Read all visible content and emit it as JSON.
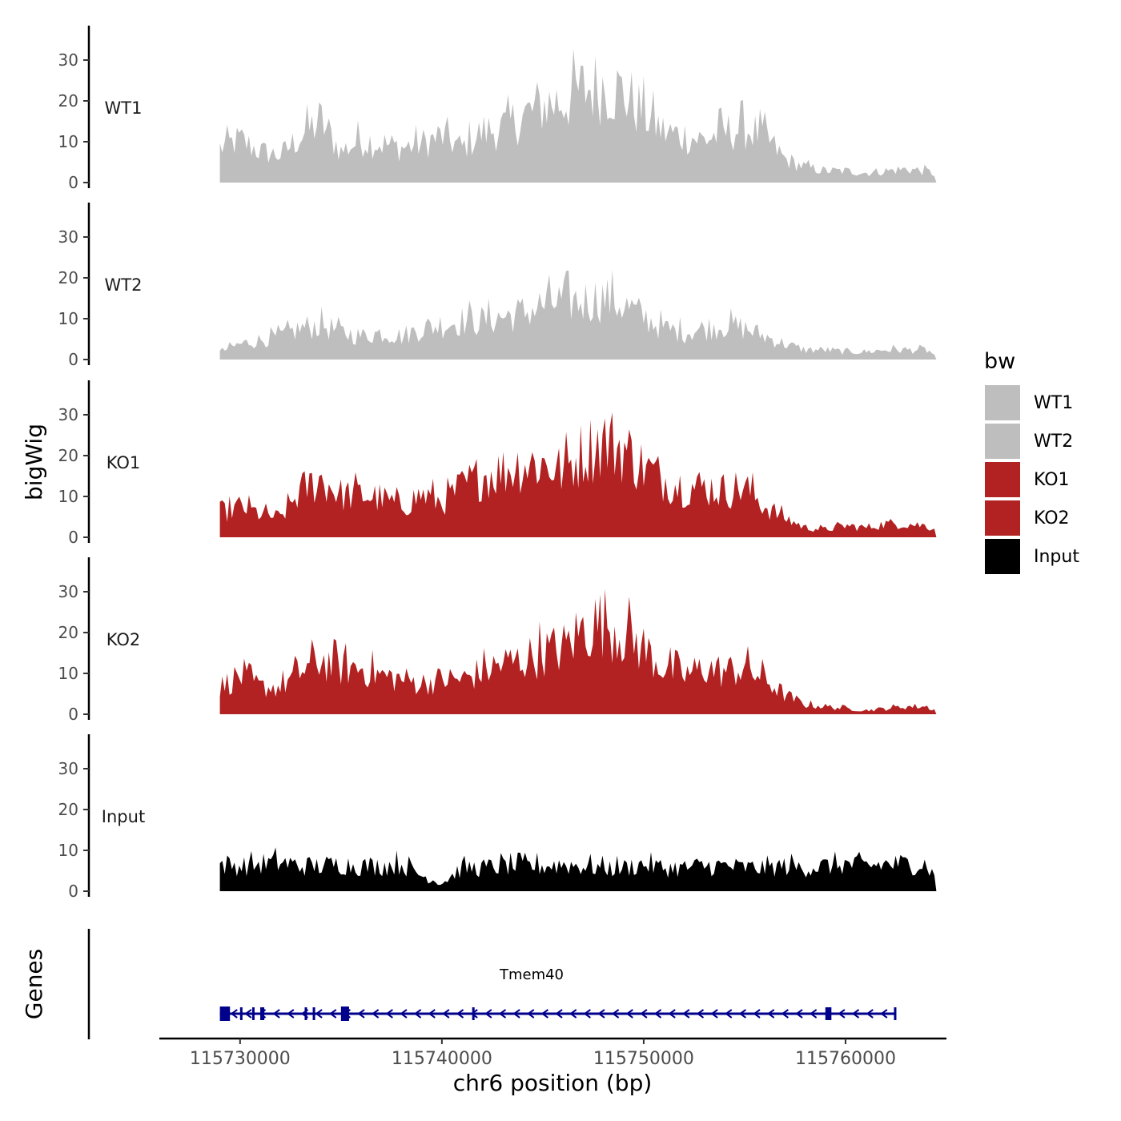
{
  "chart_data": {
    "type": "area",
    "description_ylabel": "bigWig",
    "ylabel": "bigWig",
    "xlabel": "chr6 position (bp)",
    "xlim": [
      115726000,
      115765000
    ],
    "ylim": [
      0,
      38
    ],
    "y_ticks": [
      0,
      10,
      20,
      30
    ],
    "x_ticks": [
      115730000,
      115740000,
      115750000,
      115760000
    ],
    "x_tick_labels": [
      "115730000",
      "115740000",
      "115750000",
      "115760000"
    ],
    "y_tick_labels": [
      "0",
      "10",
      "20",
      "30"
    ],
    "data_start": 115729000,
    "data_end": 115764500,
    "legend": {
      "title": "bw",
      "position": "right",
      "entries": [
        {
          "label": "WT1",
          "color": "#BEBEBE"
        },
        {
          "label": "WT2",
          "color": "#BEBEBE"
        },
        {
          "label": "KO1",
          "color": "#B22222"
        },
        {
          "label": "KO2",
          "color": "#B22222"
        },
        {
          "label": "Input",
          "color": "#000000"
        }
      ]
    },
    "series": [
      {
        "name": "WT1",
        "color": "#BEBEBE",
        "anchors": [
          [
            115729000,
            9
          ],
          [
            115730000,
            11
          ],
          [
            115731000,
            8
          ],
          [
            115732000,
            7
          ],
          [
            115733000,
            12
          ],
          [
            115734000,
            16
          ],
          [
            115735000,
            8
          ],
          [
            115736000,
            11
          ],
          [
            115737000,
            10
          ],
          [
            115738000,
            9
          ],
          [
            115739000,
            10
          ],
          [
            115740000,
            12
          ],
          [
            115741000,
            9
          ],
          [
            115742000,
            13
          ],
          [
            115743000,
            14
          ],
          [
            115744000,
            17
          ],
          [
            115745000,
            20
          ],
          [
            115746000,
            21
          ],
          [
            115747000,
            24
          ],
          [
            115748000,
            25
          ],
          [
            115749000,
            23
          ],
          [
            115750000,
            18
          ],
          [
            115751000,
            13
          ],
          [
            115752000,
            12
          ],
          [
            115753000,
            11
          ],
          [
            115754000,
            13
          ],
          [
            115755000,
            14
          ],
          [
            115756000,
            12
          ],
          [
            115757000,
            6
          ],
          [
            115758000,
            4
          ],
          [
            115759000,
            3
          ],
          [
            115760000,
            3
          ],
          [
            115761000,
            2.5
          ],
          [
            115762000,
            3
          ],
          [
            115763000,
            3.5
          ],
          [
            115764000,
            3
          ],
          [
            115764500,
            2
          ]
        ]
      },
      {
        "name": "WT2",
        "color": "#BEBEBE",
        "anchors": [
          [
            115729000,
            2
          ],
          [
            115730000,
            4
          ],
          [
            115731000,
            5
          ],
          [
            115732000,
            6
          ],
          [
            115733000,
            8
          ],
          [
            115734000,
            9
          ],
          [
            115735000,
            7
          ],
          [
            115736000,
            6
          ],
          [
            115737000,
            7
          ],
          [
            115738000,
            6
          ],
          [
            115739000,
            8
          ],
          [
            115740000,
            9
          ],
          [
            115741000,
            10
          ],
          [
            115742000,
            10
          ],
          [
            115743000,
            11
          ],
          [
            115744000,
            12
          ],
          [
            115745000,
            14
          ],
          [
            115746000,
            15
          ],
          [
            115747000,
            15
          ],
          [
            115748000,
            16
          ],
          [
            115749000,
            14
          ],
          [
            115750000,
            11
          ],
          [
            115751000,
            8
          ],
          [
            115752000,
            7
          ],
          [
            115753000,
            8
          ],
          [
            115754000,
            9
          ],
          [
            115755000,
            8
          ],
          [
            115756000,
            6
          ],
          [
            115757000,
            4
          ],
          [
            115758000,
            2.5
          ],
          [
            115759000,
            2.5
          ],
          [
            115760000,
            2
          ],
          [
            115761000,
            2
          ],
          [
            115762000,
            2.5
          ],
          [
            115763000,
            2.5
          ],
          [
            115764000,
            2.5
          ],
          [
            115764500,
            1
          ]
        ]
      },
      {
        "name": "KO1",
        "color": "#B22222",
        "anchors": [
          [
            115729000,
            6
          ],
          [
            115730000,
            8
          ],
          [
            115731000,
            6
          ],
          [
            115732000,
            5
          ],
          [
            115733000,
            12
          ],
          [
            115734000,
            15
          ],
          [
            115735000,
            11
          ],
          [
            115736000,
            11
          ],
          [
            115737000,
            10
          ],
          [
            115738000,
            8
          ],
          [
            115739000,
            11
          ],
          [
            115740000,
            9
          ],
          [
            115741000,
            13
          ],
          [
            115742000,
            16
          ],
          [
            115743000,
            17
          ],
          [
            115744000,
            19
          ],
          [
            115745000,
            19
          ],
          [
            115746000,
            17
          ],
          [
            115747000,
            22
          ],
          [
            115748000,
            25
          ],
          [
            115749000,
            23
          ],
          [
            115750000,
            18
          ],
          [
            115751000,
            15
          ],
          [
            115752000,
            13
          ],
          [
            115753000,
            13
          ],
          [
            115754000,
            12
          ],
          [
            115755000,
            13
          ],
          [
            115756000,
            8
          ],
          [
            115757000,
            5
          ],
          [
            115758000,
            2.5
          ],
          [
            115759000,
            2
          ],
          [
            115760000,
            3
          ],
          [
            115761000,
            2.5
          ],
          [
            115762000,
            3.5
          ],
          [
            115763000,
            3.5
          ],
          [
            115764000,
            3
          ],
          [
            115764500,
            2
          ]
        ]
      },
      {
        "name": "KO2",
        "color": "#B22222",
        "anchors": [
          [
            115729000,
            7
          ],
          [
            115730000,
            10
          ],
          [
            115731000,
            7
          ],
          [
            115732000,
            7
          ],
          [
            115733000,
            11
          ],
          [
            115734000,
            14
          ],
          [
            115735000,
            12
          ],
          [
            115736000,
            12
          ],
          [
            115737000,
            10
          ],
          [
            115738000,
            9
          ],
          [
            115739000,
            8
          ],
          [
            115740000,
            9
          ],
          [
            115741000,
            9
          ],
          [
            115742000,
            11
          ],
          [
            115743000,
            13
          ],
          [
            115744000,
            14
          ],
          [
            115745000,
            16
          ],
          [
            115746000,
            17
          ],
          [
            115747000,
            22
          ],
          [
            115748000,
            24
          ],
          [
            115749000,
            21
          ],
          [
            115750000,
            17
          ],
          [
            115751000,
            12
          ],
          [
            115752000,
            10
          ],
          [
            115753000,
            12
          ],
          [
            115754000,
            11
          ],
          [
            115755000,
            12
          ],
          [
            115756000,
            9
          ],
          [
            115757000,
            5
          ],
          [
            115758000,
            2.5
          ],
          [
            115759000,
            2
          ],
          [
            115760000,
            1.5
          ],
          [
            115761000,
            1
          ],
          [
            115762000,
            1.5
          ],
          [
            115763000,
            2
          ],
          [
            115764000,
            2
          ],
          [
            115764500,
            1
          ]
        ]
      },
      {
        "name": "Input",
        "color": "#000000",
        "anchors": [
          [
            115729000,
            7
          ],
          [
            115730000,
            6.5
          ],
          [
            115731000,
            7
          ],
          [
            115732000,
            7.5
          ],
          [
            115733000,
            6.5
          ],
          [
            115734000,
            6.5
          ],
          [
            115735000,
            7
          ],
          [
            115736000,
            6.5
          ],
          [
            115737000,
            6.5
          ],
          [
            115738000,
            7
          ],
          [
            115739000,
            4
          ],
          [
            115740000,
            2
          ],
          [
            115741000,
            6
          ],
          [
            115742000,
            6
          ],
          [
            115743000,
            6.5
          ],
          [
            115744000,
            6.5
          ],
          [
            115745000,
            6.5
          ],
          [
            115746000,
            7
          ],
          [
            115747000,
            6.5
          ],
          [
            115748000,
            6
          ],
          [
            115749000,
            6
          ],
          [
            115750000,
            7
          ],
          [
            115751000,
            6
          ],
          [
            115752000,
            6
          ],
          [
            115753000,
            6.5
          ],
          [
            115754000,
            6.5
          ],
          [
            115755000,
            6
          ],
          [
            115756000,
            6
          ],
          [
            115757000,
            6.5
          ],
          [
            115758000,
            6
          ],
          [
            115759000,
            6.5
          ],
          [
            115760000,
            7
          ],
          [
            115761000,
            6.5
          ],
          [
            115762000,
            7
          ],
          [
            115763000,
            7
          ],
          [
            115764000,
            7
          ],
          [
            115764500,
            3
          ]
        ]
      }
    ],
    "genes": {
      "track_label": "Genes",
      "name": "Tmem40",
      "color": "#00008B",
      "strand": "-",
      "start": 115729000,
      "end": 115762500,
      "exons": [
        [
          115729000,
          115729500
        ],
        [
          115730000,
          115730100
        ],
        [
          115730600,
          115730700
        ],
        [
          115731000,
          115731200
        ],
        [
          115733200,
          115733300
        ],
        [
          115733600,
          115733700
        ],
        [
          115735000,
          115735400
        ],
        [
          115741500,
          115741600
        ],
        [
          115759000,
          115759300
        ],
        [
          115762400,
          115762500
        ]
      ]
    }
  }
}
